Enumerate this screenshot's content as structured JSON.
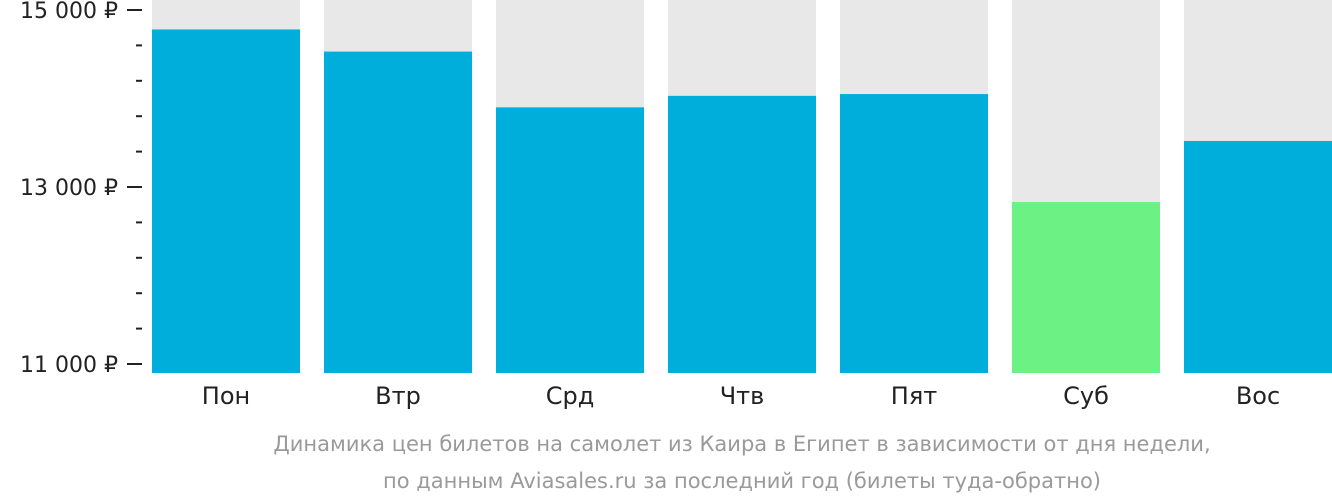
{
  "chart_data": {
    "type": "bar",
    "categories": [
      "Пон",
      "Втр",
      "Срд",
      "Чтв",
      "Пят",
      "Суб",
      "Вос"
    ],
    "values": [
      14780,
      14530,
      13900,
      14030,
      14050,
      12830,
      13520
    ],
    "ylim": [
      11000,
      15000
    ],
    "yticks": [
      {
        "value": 15000,
        "label": "15 000 ₽"
      },
      {
        "value": 13000,
        "label": "13 000 ₽"
      },
      {
        "value": 11000,
        "label": "11 000 ₽"
      }
    ],
    "minor_tick_step": 400,
    "highlight_index": 5,
    "colors": {
      "bar": "#00aedb",
      "highlight": "#6cf284",
      "background": "#e8e8e8",
      "axis": "#222222"
    },
    "caption": [
      "Динамика цен билетов на самолет из Каира в Египет в зависимости от дня недели,",
      "по данным Aviasales.ru за последний год (билеты туда-обратно)"
    ]
  }
}
